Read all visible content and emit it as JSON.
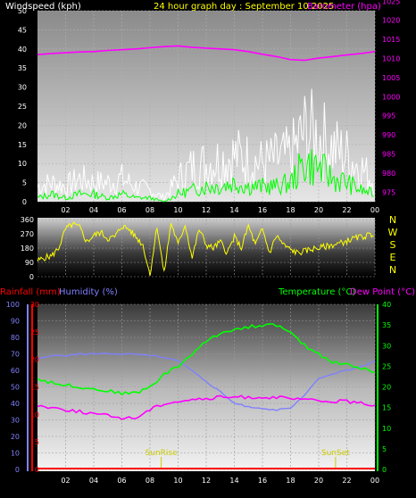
{
  "chart_data": [
    {
      "type": "line",
      "title": "24 hour graph day : September 10 2025",
      "left_axis_label": "Windspeed (kph)",
      "right_axis_label": "Barometer (hpa)",
      "left_ylim": [
        0,
        50
      ],
      "right_ylim": [
        970,
        1020
      ],
      "left_ticks": [
        "0",
        "5",
        "10",
        "15",
        "20",
        "25",
        "30",
        "35",
        "40",
        "45",
        "50"
      ],
      "right_ticks": [
        "975",
        "980",
        "985",
        "990",
        "995",
        "1000",
        "1005",
        "1010",
        "1015",
        "1020",
        "1025"
      ],
      "x_ticks": [
        "02",
        "04",
        "06",
        "08",
        "10",
        "12",
        "14",
        "16",
        "18",
        "20",
        "22",
        "00"
      ],
      "colors": {
        "left_axis": "#ffffff",
        "title": "#ffff00",
        "right_axis": "#ff00ff",
        "gust": "#ffffff",
        "wind": "#00ff00",
        "barometer": "#ff00ff"
      },
      "series": [
        {
          "key": "barometer",
          "x": [
            0,
            1,
            2,
            3,
            4,
            5,
            6,
            7,
            8,
            9,
            10,
            11,
            12,
            13,
            14,
            15,
            16,
            17,
            18,
            19,
            20,
            21,
            22,
            23,
            24
          ],
          "values": [
            1008.5,
            1008.8,
            1009.0,
            1009.2,
            1009.3,
            1009.6,
            1009.8,
            1010.0,
            1010.3,
            1010.6,
            1010.8,
            1010.4,
            1010.2,
            1010.0,
            1009.8,
            1009.3,
            1008.6,
            1008.0,
            1007.2,
            1007.0,
            1007.6,
            1008.0,
            1008.4,
            1008.8,
            1009.3
          ]
        },
        {
          "key": "gust",
          "x": [
            0,
            1,
            2,
            3,
            4,
            5,
            6,
            7,
            8,
            9,
            10,
            11,
            12,
            13,
            14,
            15,
            16,
            17,
            18,
            19,
            20,
            21,
            22,
            23,
            24
          ],
          "values": [
            4,
            5,
            4,
            6,
            5,
            5,
            6,
            4,
            3,
            1,
            6,
            9,
            10,
            11,
            12,
            11,
            10,
            11,
            12,
            18,
            17,
            14,
            12,
            9,
            5
          ]
        },
        {
          "key": "wind",
          "x": [
            0,
            1,
            2,
            3,
            4,
            5,
            6,
            7,
            8,
            9,
            10,
            11,
            12,
            13,
            14,
            15,
            16,
            17,
            18,
            19,
            20,
            21,
            22,
            23,
            24
          ],
          "values": [
            1,
            2,
            1,
            2,
            2,
            1,
            2,
            1,
            1,
            0,
            2,
            3,
            4,
            4,
            5,
            4,
            4,
            4,
            5,
            10,
            9,
            6,
            5,
            3,
            2
          ]
        }
      ]
    },
    {
      "type": "line",
      "left_ylim": [
        0,
        360
      ],
      "left_ticks": [
        "0",
        "90",
        "180",
        "270",
        "360"
      ],
      "right_ticks": [
        "N",
        "W",
        "S",
        "E",
        "N"
      ],
      "x_ticks": [
        "02",
        "04",
        "06",
        "08",
        "10",
        "12",
        "14",
        "16",
        "18",
        "20",
        "22",
        "00"
      ],
      "colors": {
        "tick": "#ffffff",
        "compass": "#ffff00",
        "direction": "#ffff00"
      },
      "series": [
        {
          "key": "direction",
          "x": [
            0,
            0.5,
            1,
            1.5,
            2,
            2.5,
            3,
            3.5,
            4,
            4.5,
            5,
            5.5,
            6,
            6.5,
            7,
            7.5,
            8,
            8.5,
            9,
            9.5,
            10,
            10.5,
            11,
            11.5,
            12,
            12.5,
            13,
            13.5,
            14,
            14.5,
            15,
            15.5,
            16,
            16.5,
            17,
            17.5,
            18,
            18.5,
            19,
            19.5,
            20,
            20.5,
            21,
            21.5,
            22,
            22.5,
            23,
            23.5,
            24
          ],
          "values": [
            100,
            120,
            130,
            180,
            300,
            330,
            310,
            220,
            260,
            280,
            240,
            250,
            320,
            300,
            250,
            200,
            10,
            320,
            20,
            340,
            200,
            330,
            120,
            300,
            200,
            180,
            220,
            150,
            250,
            180,
            320,
            200,
            300,
            150,
            260,
            200,
            170,
            150,
            160,
            175,
            180,
            190,
            200,
            210,
            225,
            240,
            250,
            260,
            270
          ]
        }
      ]
    },
    {
      "type": "line",
      "rainfall_label": "Rainfall (mm)",
      "humidity_label": "Humidity (%)",
      "temperature_label": "Temperature (°C)",
      "dewpoint_label": "Dew Point (°C)",
      "humidity_ylim": [
        0,
        100
      ],
      "rain_ylim": [
        0,
        30
      ],
      "temp_ylim": [
        0,
        40
      ],
      "humidity_ticks": [
        "0",
        "10",
        "20",
        "30",
        "40",
        "50",
        "60",
        "70",
        "80",
        "90",
        "100"
      ],
      "rain_ticks": [
        "0",
        "5",
        "10",
        "15",
        "20",
        "25",
        "30"
      ],
      "temp_ticks": [
        "0",
        "5",
        "10",
        "15",
        "20",
        "25",
        "30",
        "35",
        "40"
      ],
      "x_ticks": [
        "02",
        "04",
        "06",
        "08",
        "10",
        "12",
        "14",
        "16",
        "18",
        "20",
        "22",
        "00"
      ],
      "annotations": [
        {
          "text": "SunRise",
          "x": 8.8
        },
        {
          "text": "SunSet",
          "x": 21.2
        }
      ],
      "colors": {
        "rainfall": "#ff0000",
        "humidity": "#8080ff",
        "temperature": "#00ff00",
        "dewpoint": "#ff00ff",
        "sun": "#cccc00"
      },
      "series": [
        {
          "key": "humidity",
          "x": [
            0,
            1,
            2,
            3,
            4,
            5,
            6,
            7,
            8,
            9,
            10,
            11,
            12,
            13,
            14,
            15,
            16,
            17,
            18,
            19,
            20,
            21,
            22,
            23,
            24
          ],
          "values": [
            67,
            69,
            69,
            70,
            70,
            70,
            70,
            70,
            69,
            68,
            66,
            60,
            53,
            47,
            40,
            38,
            37,
            36,
            37,
            45,
            55,
            58,
            60,
            62,
            66
          ]
        },
        {
          "key": "temperature",
          "x": [
            0,
            1,
            2,
            3,
            4,
            5,
            6,
            7,
            8,
            9,
            10,
            11,
            12,
            13,
            14,
            15,
            16,
            17,
            18,
            19,
            20,
            21,
            22,
            23,
            24
          ],
          "values": [
            22,
            21,
            20.5,
            20,
            19.5,
            19,
            18.5,
            18.5,
            20,
            23,
            25,
            28,
            31,
            33,
            34,
            34.5,
            35,
            35,
            33,
            30,
            28,
            26,
            25.5,
            24.5,
            23.5
          ]
        },
        {
          "key": "dewpoint",
          "x": [
            0,
            1,
            2,
            3,
            4,
            5,
            6,
            7,
            8,
            9,
            10,
            11,
            12,
            13,
            14,
            15,
            16,
            17,
            18,
            19,
            20,
            21,
            22,
            23,
            24
          ],
          "values": [
            15.5,
            15,
            14.5,
            14,
            13.5,
            13,
            12.5,
            12.5,
            14.5,
            16,
            16.5,
            17,
            17,
            17.5,
            17.5,
            17.5,
            17.5,
            17.5,
            17,
            17,
            16.5,
            16.5,
            16.5,
            16,
            15.5
          ]
        },
        {
          "key": "rainfall",
          "x": [
            0,
            24
          ],
          "values": [
            0,
            0
          ]
        }
      ]
    }
  ]
}
